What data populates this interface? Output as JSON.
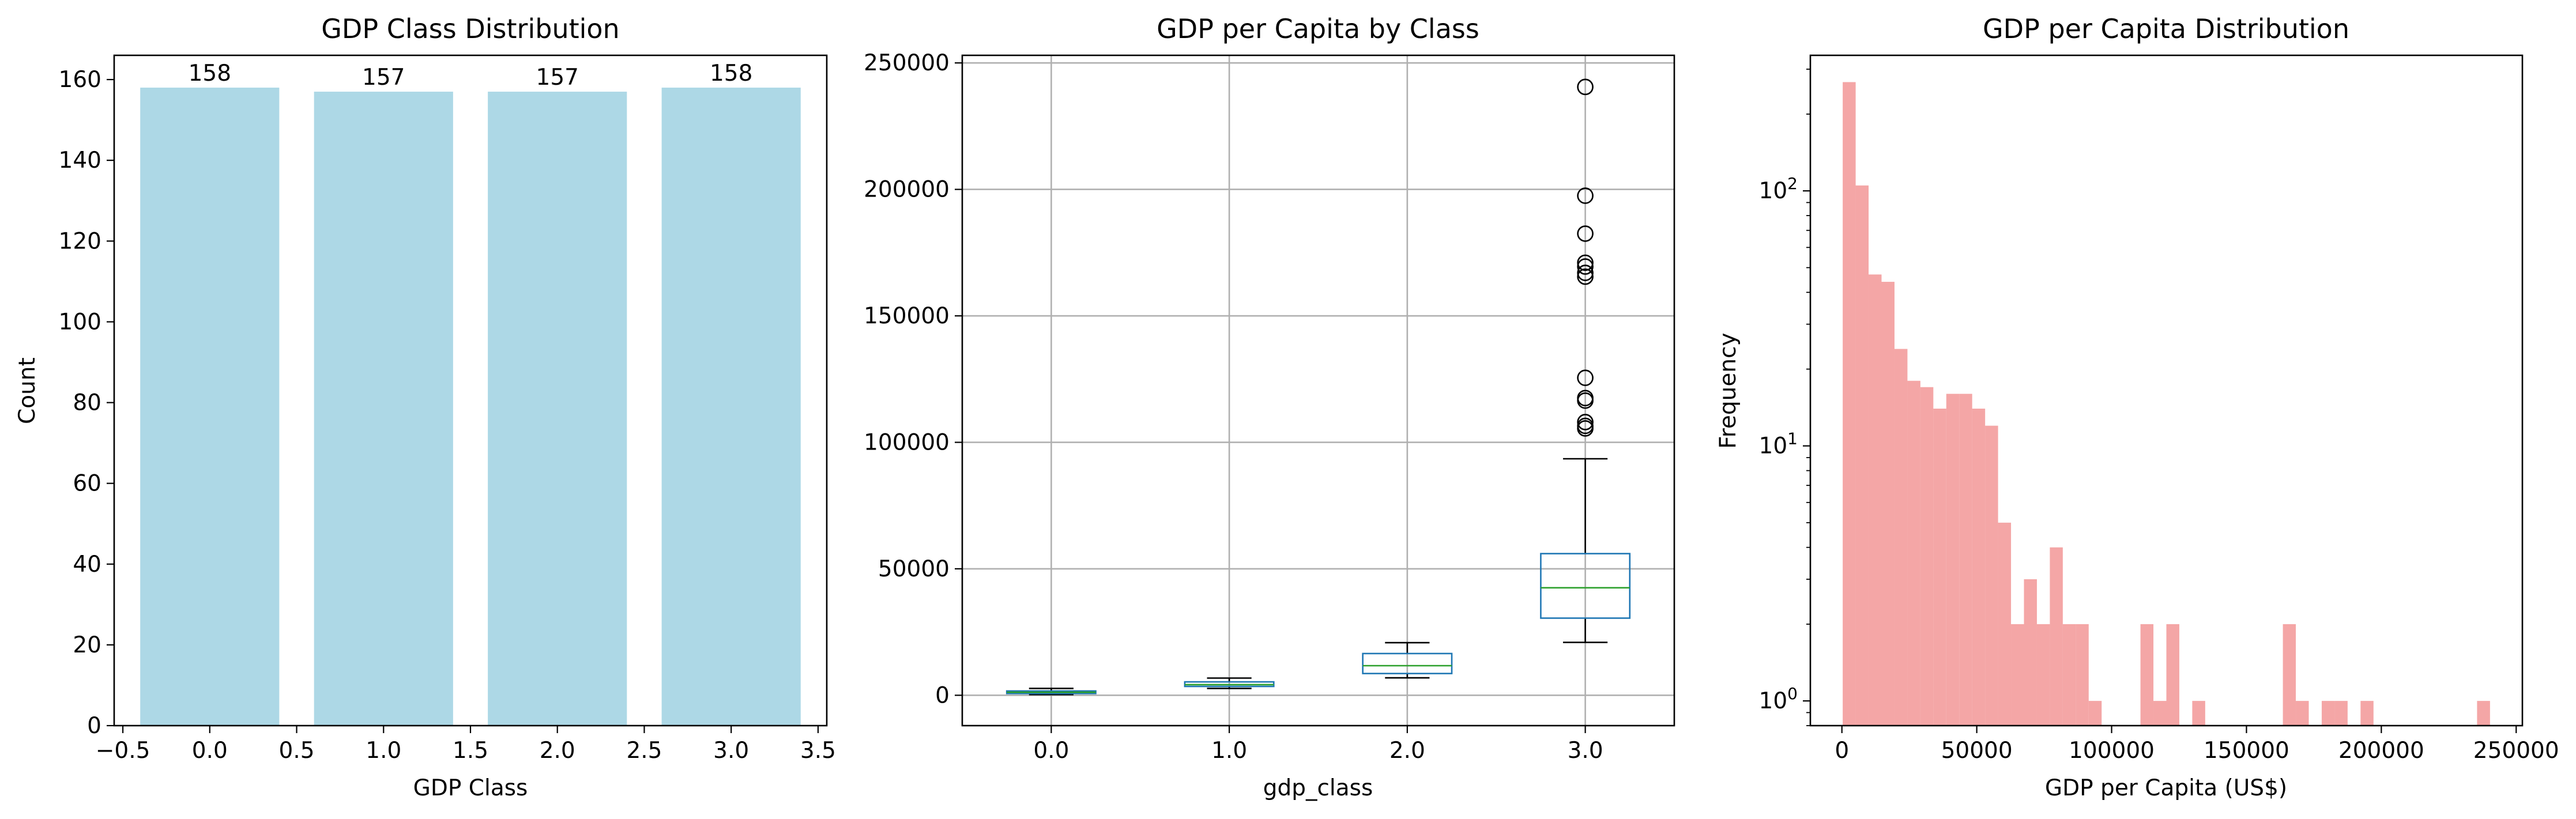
{
  "chart_data": [
    {
      "type": "bar",
      "title": "GDP Class Distribution",
      "xlabel": "GDP Class",
      "ylabel": "Count",
      "categories": [
        "0.0",
        "1.0",
        "2.0",
        "3.0"
      ],
      "x": [
        0,
        1,
        2,
        3
      ],
      "values": [
        158,
        157,
        157,
        158
      ],
      "data_labels": [
        "158",
        "157",
        "157",
        "158"
      ],
      "xlim": [
        -0.55,
        3.55
      ],
      "ylim": [
        0,
        166
      ],
      "xticks": [
        -0.5,
        0.0,
        0.5,
        1.0,
        1.5,
        2.0,
        2.5,
        3.0,
        3.5
      ],
      "xtick_labels": [
        "−0.5",
        "0.0",
        "0.5",
        "1.0",
        "1.5",
        "2.0",
        "2.5",
        "3.0",
        "3.5"
      ],
      "yticks": [
        0,
        20,
        40,
        60,
        80,
        100,
        120,
        140,
        160
      ],
      "ytick_labels": [
        "0",
        "20",
        "40",
        "60",
        "80",
        "100",
        "120",
        "140",
        "160"
      ],
      "bar_color": "#add8e6",
      "grid": false
    },
    {
      "type": "box",
      "title": "GDP per Capita by Class",
      "xlabel": "gdp_class",
      "ylabel": "",
      "categories": [
        "0.0",
        "1.0",
        "2.0",
        "3.0"
      ],
      "boxes": [
        {
          "whislo": 300,
          "q1": 700,
          "med": 1200,
          "q3": 1700,
          "whishi": 2700,
          "fliers": []
        },
        {
          "whislo": 2700,
          "q1": 3500,
          "med": 4200,
          "q3": 5300,
          "whishi": 6800,
          "fliers": []
        },
        {
          "whislo": 6900,
          "q1": 8600,
          "med": 11700,
          "q3": 16500,
          "whishi": 20800,
          "fliers": []
        },
        {
          "whislo": 20900,
          "q1": 30500,
          "med": 42500,
          "q3": 56000,
          "whishi": 93500,
          "fliers": [
            105500,
            106500,
            108000,
            116500,
            117500,
            125500,
            165500,
            167000,
            169500,
            171000,
            182500,
            197500,
            240500
          ]
        }
      ],
      "ylim": [
        -12000,
        253000
      ],
      "yticks": [
        0,
        50000,
        100000,
        150000,
        200000,
        250000
      ],
      "ytick_labels": [
        "0",
        "50000",
        "100000",
        "150000",
        "200000",
        "250000"
      ],
      "box_color": "#1f77b4",
      "median_color": "#2ca02c",
      "grid": true
    },
    {
      "type": "histogram",
      "title": "GDP per Capita Distribution",
      "xlabel": "GDP per Capita (US$)",
      "ylabel": "Frequency",
      "yscale": "log",
      "bin_start": 300,
      "bin_width": 4800,
      "counts": [
        267,
        105,
        47,
        44,
        24,
        18,
        17,
        14,
        16,
        16,
        14,
        12,
        5,
        2,
        3,
        2,
        4,
        2,
        2,
        1,
        0,
        0,
        0,
        2,
        1,
        2,
        0,
        1,
        0,
        0,
        0,
        0,
        0,
        0,
        2,
        1,
        0,
        1,
        1,
        0,
        1,
        0,
        0,
        0,
        0,
        0,
        0,
        0,
        0,
        1
      ],
      "xlim": [
        -11700,
        252300
      ],
      "ylim": [
        0.8,
        340
      ],
      "xticks": [
        0,
        50000,
        100000,
        150000,
        200000,
        250000
      ],
      "xtick_labels": [
        "0",
        "50000",
        "100000",
        "150000",
        "200000",
        "250000"
      ],
      "yticks": [
        1,
        10,
        100
      ],
      "ytick_labels": [
        [
          "10",
          "0"
        ],
        [
          "10",
          "1"
        ],
        [
          "10",
          "2"
        ]
      ],
      "bar_color": "#f08080",
      "bar_alpha": 0.7,
      "grid": false
    }
  ]
}
